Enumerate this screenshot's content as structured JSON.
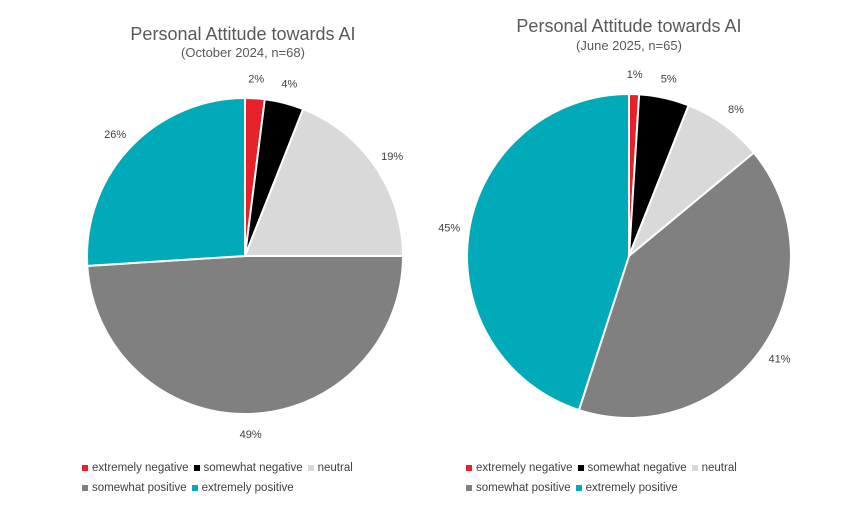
{
  "chart_data": [
    {
      "type": "pie",
      "title": "Personal Attitude towards AI",
      "subtitle": "(October 2024, n=68)",
      "categories": [
        "extremely negative",
        "somewhat negative",
        "neutral",
        "somewhat positive",
        "extremely positive"
      ],
      "values": [
        2,
        4,
        19,
        49,
        26
      ],
      "value_labels": [
        "2%",
        "4%",
        "19%",
        "49%",
        "26%"
      ],
      "colors": [
        "#e8202a",
        "#000000",
        "#d9d9d9",
        "#808080",
        "#00aab8"
      ],
      "legend_position": "bottom",
      "legend_rows": [
        [
          "extremely negative",
          "somewhat negative",
          "neutral"
        ],
        [
          "somewhat positive",
          "extremely positive"
        ]
      ]
    },
    {
      "type": "pie",
      "title": "Personal Attitude towards AI",
      "subtitle": "(June 2025, n=65)",
      "categories": [
        "extremely negative",
        "somewhat negative",
        "neutral",
        "somewhat positive",
        "extremely positive"
      ],
      "values": [
        1,
        5,
        8,
        41,
        45
      ],
      "value_labels": [
        "1%",
        "5%",
        "8%",
        "41%",
        "45%"
      ],
      "colors": [
        "#e8202a",
        "#000000",
        "#d9d9d9",
        "#808080",
        "#00aab8"
      ],
      "legend_position": "bottom",
      "legend_rows": [
        [
          "extremely negative",
          "somewhat negative",
          "neutral"
        ],
        [
          "somewhat positive",
          "extremely positive"
        ]
      ]
    }
  ]
}
